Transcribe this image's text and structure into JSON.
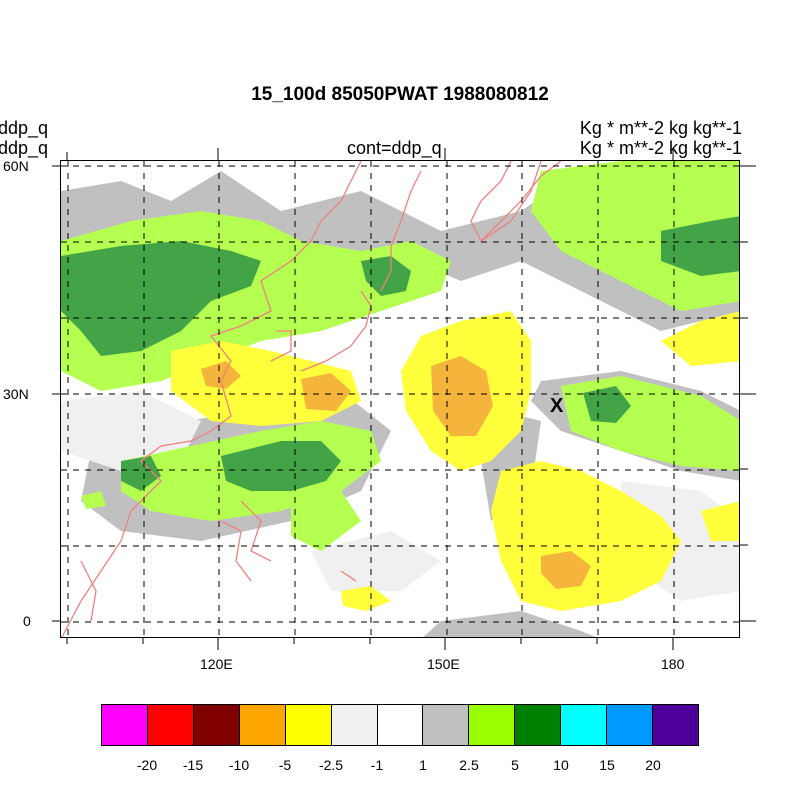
{
  "title": "15_100d 85050PWAT  1988080812",
  "left_header": {
    "line1": "ddp_q",
    "line2": "ddp_q"
  },
  "center_header": "cont=ddp_q",
  "right_header": {
    "line1": "Kg  * m**-2 kg kg**-1",
    "line2": "Kg  * m**-2 kg kg**-1"
  },
  "map": {
    "lat_labels": [
      "60N",
      "30N",
      "0"
    ],
    "lon_labels": [
      "120E",
      "150E",
      "180"
    ],
    "marker": "X",
    "coastline_color": "#f08080",
    "grid": "dashed"
  },
  "colorbar": {
    "colors": [
      "#ff00ff",
      "#ff0000",
      "#800000",
      "#ffa500",
      "#ffff00",
      "#f0f0f0",
      "#ffffff",
      "#c0c0c0",
      "#99ff00",
      "#008000",
      "#00ffff",
      "#0099ff",
      "#4c0099"
    ],
    "labels": [
      "-20",
      "-15",
      "-10",
      "-5",
      "-2.5",
      "-1",
      "1",
      "2.5",
      "5",
      "10",
      "15",
      "20"
    ]
  }
}
